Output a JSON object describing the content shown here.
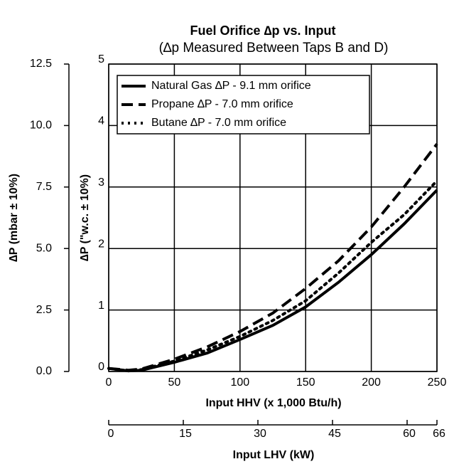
{
  "chart_data": {
    "type": "line",
    "title": "Fuel Orifice ∆p vs. Input",
    "subtitle": "(∆p Measured Between Taps B and D)",
    "xlabel": "Input HHV (x 1,000 Btu/h)",
    "x2label": "Input LHV (kW)",
    "ylabel": "∆P (\"w.c. ± 10%)",
    "y2label": "∆P (mbar ± 10%)",
    "x": [
      0,
      15,
      25,
      50,
      75,
      100,
      125,
      150,
      175,
      200,
      225,
      250
    ],
    "series": [
      {
        "name": "Natural Gas ∆P - 9.1 mm orifice",
        "color": "#000000",
        "style": "solid",
        "values": [
          0.05,
          0.01,
          0.02,
          0.15,
          0.3,
          0.52,
          0.75,
          1.05,
          1.45,
          1.9,
          2.4,
          2.95
        ]
      },
      {
        "name": "Propane ∆P - 7.0 mm orifice",
        "color": "#000000",
        "style": "dashed",
        "values": [
          0.05,
          0.02,
          0.04,
          0.2,
          0.4,
          0.65,
          0.95,
          1.35,
          1.8,
          2.35,
          3.0,
          3.7
        ]
      },
      {
        "name": "Butane ∆P - 7.0 mm orifice",
        "color": "#000000",
        "style": "dotted",
        "values": [
          0.05,
          0.01,
          0.03,
          0.17,
          0.35,
          0.57,
          0.83,
          1.15,
          1.6,
          2.1,
          2.55,
          3.1
        ]
      }
    ],
    "xlim": [
      0,
      250
    ],
    "xticks": [
      0,
      50,
      100,
      150,
      200,
      250
    ],
    "x2lim": [
      0,
      66
    ],
    "x2ticks": [
      0,
      15,
      30,
      45,
      60,
      66
    ],
    "ylim": [
      0,
      5
    ],
    "yticks": [
      0,
      1,
      2,
      3,
      4,
      5
    ],
    "y2lim": [
      0,
      12.5
    ],
    "y2ticks": [
      {
        "value": 0,
        "label": "0.0"
      },
      {
        "value": 2.5,
        "label": "2.5"
      },
      {
        "value": 5,
        "label": "5.0"
      },
      {
        "value": 7.5,
        "label": "7.5"
      },
      {
        "value": 10,
        "label": "10.0"
      },
      {
        "value": 12.5,
        "label": "12.5"
      }
    ],
    "grid": true,
    "legend": "upper left"
  }
}
